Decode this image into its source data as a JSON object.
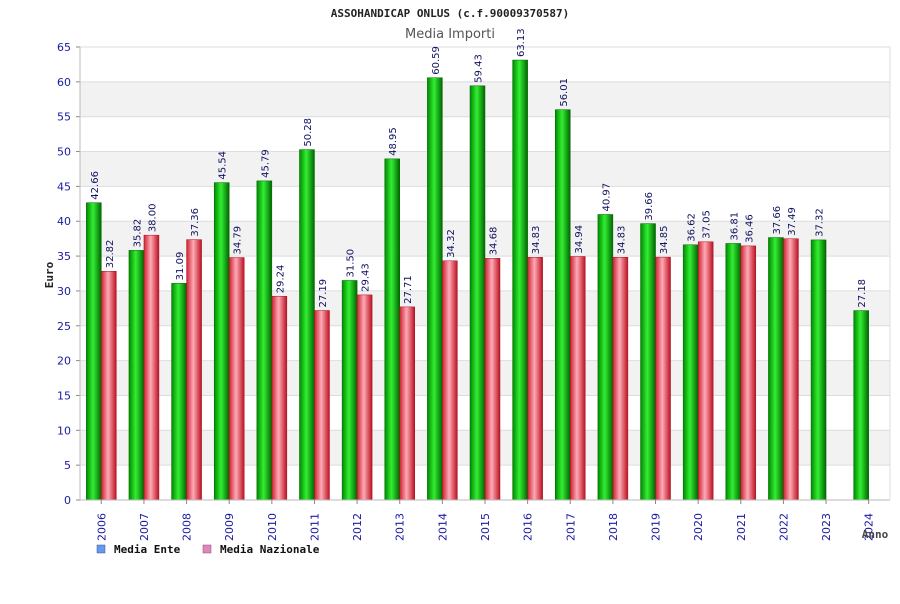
{
  "chart_data": {
    "type": "bar",
    "title": "ASSOHANDICAP ONLUS (c.f.90009370587)",
    "subtitle": "Media Importi",
    "xlabel": "Anno",
    "ylabel": "Euro",
    "ylim": [
      0,
      65
    ],
    "yticks": [
      0,
      5,
      10,
      15,
      20,
      25,
      30,
      35,
      40,
      45,
      50,
      55,
      60,
      65
    ],
    "grid": true,
    "legend_position": "bottom-left",
    "categories": [
      "2006",
      "2007",
      "2008",
      "2009",
      "2010",
      "2011",
      "2012",
      "2013",
      "2014",
      "2015",
      "2016",
      "2017",
      "2018",
      "2019",
      "2020",
      "2021",
      "2022",
      "2023",
      "2024"
    ],
    "series": [
      {
        "name": "Media Ente",
        "color": "#00aa00",
        "legend_color": "#6699ee",
        "values": [
          42.66,
          35.82,
          31.09,
          45.54,
          45.79,
          50.28,
          31.5,
          48.95,
          60.59,
          59.43,
          63.13,
          56.01,
          40.97,
          39.66,
          36.62,
          36.81,
          37.66,
          37.32,
          27.18
        ],
        "labels": [
          "42.66",
          "35.82",
          "31.09",
          "45.54",
          "45.79",
          "50.28",
          "31.50",
          "48.95",
          "60.59",
          "59.43",
          "63.13",
          "56.01",
          "40.97",
          "39.66",
          "36.62",
          "36.81",
          "37.66",
          "37.32",
          "27.18"
        ]
      },
      {
        "name": "Media Nazionale",
        "color": "#dd3344",
        "legend_color": "#dd88bb",
        "values": [
          32.82,
          38.0,
          37.36,
          34.79,
          29.24,
          27.19,
          29.43,
          27.71,
          34.32,
          34.68,
          34.83,
          34.94,
          34.83,
          34.85,
          37.05,
          36.46,
          37.49,
          null,
          null
        ],
        "labels": [
          "32.82",
          "38.00",
          "37.36",
          "34.79",
          "29.24",
          "27.19",
          "29.43",
          "27.71",
          "34.32",
          "34.68",
          "34.83",
          "34.94",
          "34.83",
          "34.85",
          "37.05",
          "36.46",
          "37.49",
          null,
          null
        ]
      }
    ]
  }
}
